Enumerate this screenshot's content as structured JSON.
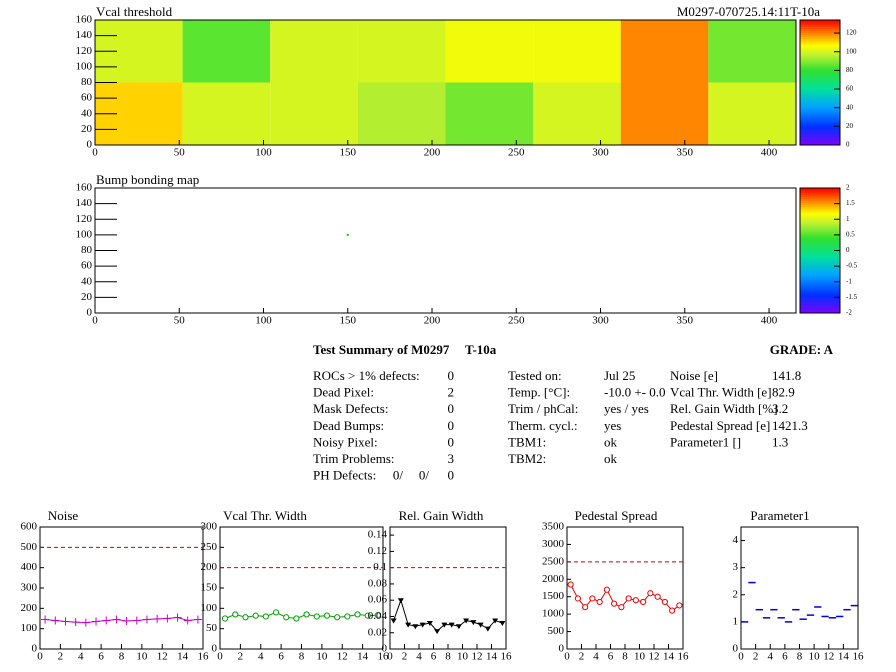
{
  "chart_data": [
    {
      "type": "heatmap",
      "title": "Vcal threshold",
      "subtitle": "M0297-070725.14:11T-10a",
      "x_edges": [
        0,
        52,
        104,
        156,
        208,
        260,
        312,
        364,
        416
      ],
      "y_edges": [
        0,
        80,
        160
      ],
      "values": [
        [
          112,
          100,
          100,
          95,
          88,
          100,
          120,
          100
        ],
        [
          100,
          85,
          100,
          100,
          105,
          105,
          120,
          88
        ]
      ],
      "xlim": [
        0,
        416
      ],
      "ylim": [
        0,
        160
      ],
      "xticks": [
        0,
        50,
        100,
        150,
        200,
        250,
        300,
        350,
        400
      ],
      "yticks": [
        0,
        20,
        40,
        60,
        80,
        100,
        120,
        140,
        160
      ],
      "zlim": [
        0,
        134
      ],
      "zticks": [
        0,
        20,
        40,
        60,
        80,
        100,
        120
      ]
    },
    {
      "type": "map",
      "title": "Bump bonding map",
      "x": [
        150
      ],
      "y": [
        100
      ],
      "color": "#00cc00",
      "xlim": [
        0,
        416
      ],
      "ylim": [
        0,
        160
      ],
      "xticks": [
        0,
        50,
        100,
        150,
        200,
        250,
        300,
        350,
        400
      ],
      "yticks": [
        0,
        20,
        40,
        60,
        80,
        100,
        120,
        140,
        160
      ],
      "zlim": [
        -2,
        2
      ],
      "zticks": [
        -2,
        -1.5,
        -1,
        -0.5,
        0,
        0.5,
        1,
        1.5,
        2
      ]
    },
    {
      "type": "profile",
      "title": "Noise",
      "color": "#cc00cc",
      "marker": "plus",
      "line": true,
      "threshold": 500,
      "x": [
        0.5,
        1.5,
        2.5,
        3.5,
        4.5,
        5.5,
        6.5,
        7.5,
        8.5,
        9.5,
        10.5,
        11.5,
        12.5,
        13.5,
        14.5,
        15.5
      ],
      "values": [
        145,
        140,
        135,
        132,
        130,
        135,
        140,
        145,
        138,
        140,
        145,
        148,
        150,
        155,
        140,
        145
      ],
      "xlim": [
        0,
        16
      ],
      "ylim": [
        0,
        600
      ],
      "xticks": [
        0,
        2,
        4,
        6,
        8,
        10,
        12,
        14,
        16
      ],
      "yticks": [
        0,
        100,
        200,
        300,
        400,
        500,
        600
      ]
    },
    {
      "type": "profile",
      "title": "Vcal Thr. Width",
      "color": "#00a000",
      "marker": "circle",
      "line": true,
      "threshold": 200,
      "x": [
        0.5,
        1.5,
        2.5,
        3.5,
        4.5,
        5.5,
        6.5,
        7.5,
        8.5,
        9.5,
        10.5,
        11.5,
        12.5,
        13.5,
        14.5,
        15.5
      ],
      "values": [
        75,
        85,
        78,
        82,
        80,
        90,
        78,
        75,
        85,
        80,
        82,
        78,
        80,
        85,
        82,
        83
      ],
      "xlim": [
        0,
        16
      ],
      "ylim": [
        0,
        300
      ],
      "xticks": [
        0,
        2,
        4,
        6,
        8,
        10,
        12,
        14,
        16
      ],
      "yticks": [
        0,
        50,
        100,
        150,
        200,
        250,
        300
      ]
    },
    {
      "type": "profile",
      "title": "Rel. Gain Width",
      "color": "#000000",
      "marker": "triangle",
      "line": true,
      "threshold": 0.1,
      "x": [
        0.5,
        1.5,
        2.5,
        3.5,
        4.5,
        5.5,
        6.5,
        7.5,
        8.5,
        9.5,
        10.5,
        11.5,
        12.5,
        13.5,
        14.5,
        15.5
      ],
      "values": [
        0.035,
        0.06,
        0.03,
        0.028,
        0.03,
        0.032,
        0.022,
        0.03,
        0.03,
        0.028,
        0.035,
        0.033,
        0.03,
        0.025,
        0.035,
        0.032
      ],
      "xlim": [
        0,
        16
      ],
      "ylim": [
        0,
        0.15
      ],
      "xticks": [
        0,
        2,
        4,
        6,
        8,
        10,
        12,
        14,
        16
      ],
      "yticks": [
        0,
        0.02,
        0.04,
        0.06,
        0.08,
        0.1,
        0.12,
        0.14
      ]
    },
    {
      "type": "profile",
      "title": "Pedestal Spread",
      "color": "#ee0000",
      "marker": "circle",
      "line": true,
      "threshold": 2500,
      "x": [
        0.5,
        1.5,
        2.5,
        3.5,
        4.5,
        5.5,
        6.5,
        7.5,
        8.5,
        9.5,
        10.5,
        11.5,
        12.5,
        13.5,
        14.5,
        15.5
      ],
      "values": [
        1850,
        1450,
        1200,
        1450,
        1350,
        1700,
        1300,
        1200,
        1450,
        1400,
        1350,
        1600,
        1500,
        1350,
        1100,
        1250
      ],
      "xlim": [
        0,
        16
      ],
      "ylim": [
        0,
        3500
      ],
      "xticks": [
        0,
        2,
        4,
        6,
        8,
        10,
        12,
        14,
        16
      ],
      "yticks": [
        0,
        500,
        1000,
        1500,
        2000,
        2500,
        3000,
        3500
      ]
    },
    {
      "type": "profile",
      "title": "Parameter1",
      "color": "#0000dd",
      "marker": "dash",
      "line": false,
      "x": [
        0.5,
        1.5,
        2.5,
        3.5,
        4.5,
        5.5,
        6.5,
        7.5,
        8.5,
        9.5,
        10.5,
        11.5,
        12.5,
        13.5,
        14.5,
        15.5
      ],
      "values": [
        1.0,
        2.45,
        1.45,
        1.15,
        1.45,
        1.15,
        1.0,
        1.45,
        1.1,
        1.25,
        1.55,
        1.2,
        1.15,
        1.2,
        1.45,
        1.6
      ],
      "xlim": [
        0,
        16
      ],
      "ylim": [
        0,
        4.5
      ],
      "xticks": [
        0,
        2,
        4,
        6,
        8,
        10,
        12,
        14,
        16
      ],
      "yticks": [
        0,
        1,
        2,
        3,
        4
      ]
    }
  ],
  "summary": {
    "title": "Test Summary of M0297",
    "module": "T-10a",
    "grade": "GRADE:  A",
    "defects": [
      [
        "ROCs > 1% defects:",
        0
      ],
      [
        "Dead Pixel:",
        2
      ],
      [
        "Mask Defects:",
        0
      ],
      [
        "Dead Bumps:",
        0
      ],
      [
        "Noisy Pixel:",
        0
      ],
      [
        "Trim Problems:",
        3
      ]
    ],
    "ph_label": "PH Defects:",
    "ph_defects": [
      {
        "text": "0/",
        "color": "#000000"
      },
      {
        "text": "0/",
        "color": "#ff0000"
      },
      {
        "text": "0",
        "color": "#0000ff"
      }
    ],
    "conditions": [
      [
        "Tested on:",
        "Jul 25"
      ],
      [
        "Temp. [°C]:",
        "-10.0 +- 0.0"
      ],
      [
        "Trim / phCal:",
        "yes / yes"
      ],
      [
        "Therm. cycl.:",
        "yes"
      ],
      [
        "TBM1:",
        "ok"
      ],
      [
        "TBM2:",
        "ok"
      ]
    ],
    "results": [
      [
        "Noise [e]",
        141.8
      ],
      [
        "Vcal Thr. Width [e]",
        82.9
      ],
      [
        "Rel. Gain Width [%]",
        3.2
      ],
      [
        "Pedestal Spread [e]",
        1421.3
      ],
      [
        "Parameter1 []",
        1.3
      ]
    ]
  }
}
